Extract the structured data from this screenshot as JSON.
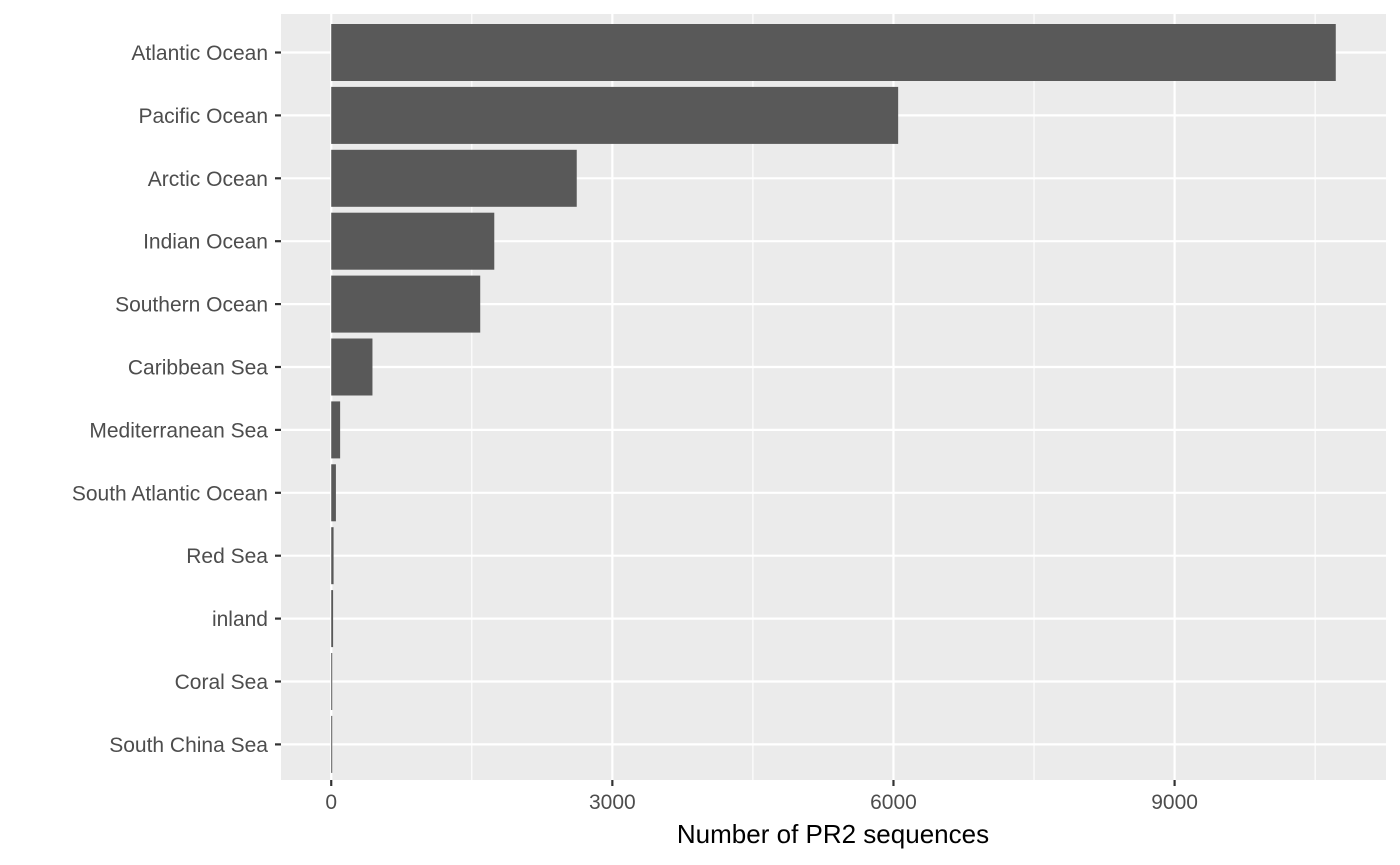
{
  "chart_data": {
    "type": "bar",
    "orientation": "horizontal",
    "categories": [
      "Atlantic Ocean",
      "Pacific Ocean",
      "Arctic Ocean",
      "Indian Ocean",
      "Southern Ocean",
      "Caribbean Sea",
      "Mediterranean Sea",
      "South Atlantic Ocean",
      "Red Sea",
      "inland",
      "Coral Sea",
      "South China Sea"
    ],
    "values": [
      10720,
      6050,
      2620,
      1740,
      1590,
      440,
      95,
      50,
      25,
      20,
      10,
      8
    ],
    "title": "",
    "xlabel": "Number of PR2 sequences",
    "ylabel": "",
    "xlim": [
      -536,
      11256
    ],
    "x_ticks": [
      0,
      3000,
      6000,
      9000
    ],
    "x_minor_ticks": [
      1500,
      4500,
      7500,
      10500
    ],
    "grid": true,
    "legend": "none",
    "colors": {
      "bar": "#595959",
      "panel": "#ebebeb",
      "grid": "#ffffff",
      "tick_label": "#4d4d4d",
      "axis_title": "#000000"
    }
  }
}
